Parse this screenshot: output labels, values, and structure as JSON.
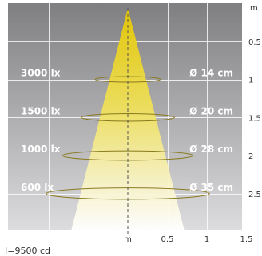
{
  "chart_data": {
    "type": "other",
    "title": "",
    "intensity_label": "I=9500 cd",
    "x_axis": {
      "label": "m",
      "ticks": [
        "0.5",
        "1",
        "1.5"
      ],
      "range": [
        0,
        1.5
      ]
    },
    "y_axis": {
      "label": "m",
      "ticks": [
        "0.5",
        "1",
        "1.5",
        "2",
        "2.5"
      ],
      "range": [
        0,
        3
      ]
    },
    "levels": [
      {
        "distance_m": 1.0,
        "illuminance": "3000 lx",
        "diameter": "Ø 14 cm",
        "diameter_m": 0.14
      },
      {
        "distance_m": 1.5,
        "illuminance": "1500 lx",
        "diameter": "Ø 20 cm",
        "diameter_m": 0.2
      },
      {
        "distance_m": 2.0,
        "illuminance": "1000 lx",
        "diameter": "Ø 28 cm",
        "diameter_m": 0.28
      },
      {
        "distance_m": 2.5,
        "illuminance": "600 lx",
        "diameter": "Ø 35 cm",
        "diameter_m": 0.35
      }
    ],
    "grid": true,
    "colors": {
      "background_top": "#7f7f81",
      "background_bottom": "#dcdcde",
      "beam_top": "#e6c800",
      "beam_bottom": "#ffffff",
      "grid": "#ffffff",
      "axis_line": "#555555"
    }
  }
}
